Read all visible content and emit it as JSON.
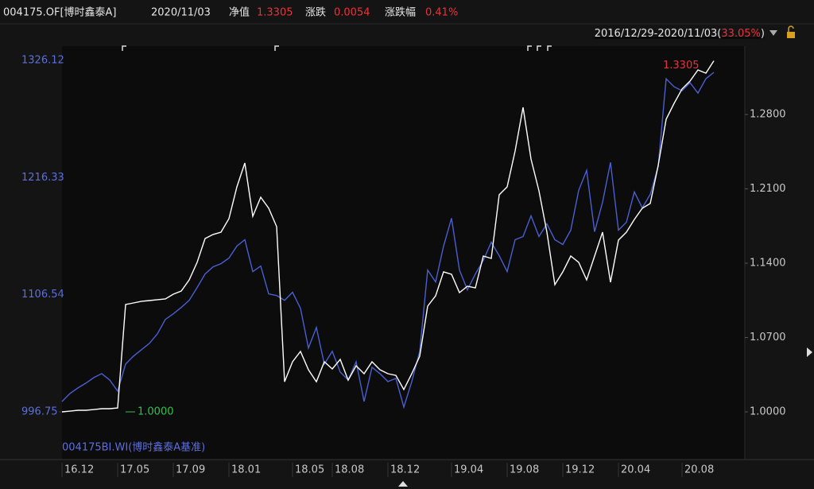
{
  "chart_data": {
    "type": "line",
    "header": {
      "date": "2020/11/03",
      "nav_label": "净值",
      "nav": "1.3305",
      "chg_label": "涨跌",
      "chg": "0.0054",
      "pct_label": "涨跌幅",
      "pct": "0.41%"
    },
    "range_text": "2016/12/29-2020/11/03(",
    "range_pct": "33.05%",
    "range_close": ")",
    "categories": [
      "16.12",
      null,
      null,
      null,
      null,
      null,
      null,
      "17.05",
      null,
      null,
      null,
      null,
      null,
      null,
      "17.09",
      null,
      null,
      null,
      null,
      null,
      null,
      "18.01",
      null,
      null,
      null,
      null,
      null,
      null,
      null,
      "18.05",
      null,
      null,
      null,
      null,
      "18.08",
      null,
      null,
      null,
      null,
      null,
      null,
      "18.12",
      null,
      null,
      null,
      null,
      null,
      null,
      null,
      "19.04",
      null,
      null,
      null,
      null,
      null,
      null,
      "19.08",
      null,
      null,
      null,
      null,
      null,
      null,
      "19.12",
      null,
      null,
      null,
      null,
      null,
      null,
      "20.04",
      null,
      null,
      null,
      null,
      null,
      null,
      null,
      "20.08",
      null,
      null,
      null,
      null
    ],
    "series": [
      {
        "name": "004175.OF[博时鑫泰A]",
        "color": "#ffffff",
        "axis": "y2",
        "values": [
          1.0,
          1.0007,
          1.0015,
          1.0015,
          1.0022,
          1.003,
          1.003,
          1.0037,
          1.1011,
          1.1026,
          1.1041,
          1.1048,
          1.1056,
          1.1063,
          1.1108,
          1.1138,
          1.1243,
          1.1408,
          1.1632,
          1.167,
          1.1692,
          1.1819,
          1.2119,
          1.2343,
          1.1842,
          1.2021,
          1.1917,
          1.1744,
          1.0284,
          1.0472,
          1.0569,
          1.0397,
          1.0284,
          1.0472,
          1.0404,
          1.0494,
          1.0299,
          1.0434,
          1.0359,
          1.0472,
          1.0397,
          1.0359,
          1.0344,
          1.021,
          1.0359,
          1.0524,
          1.0996,
          1.1093,
          1.1318,
          1.1295,
          1.1123,
          1.1183,
          1.1168,
          1.1467,
          1.1445,
          1.2044,
          1.2119,
          1.2456,
          1.2867,
          1.2381,
          1.2081,
          1.1692,
          1.1198,
          1.1318,
          1.1467,
          1.1408,
          1.1243,
          1.1467,
          1.1692,
          1.122,
          1.1617,
          1.1692,
          1.1812,
          1.1917,
          1.1962,
          1.2321,
          1.2755,
          1.2905,
          1.304,
          1.3114,
          1.3219,
          1.3189,
          1.3305
        ]
      },
      {
        "name": "004175BI.WI(博时鑫泰A基准)",
        "color": "#4a5fd0",
        "values": [
          1006.46,
          1013.93,
          1019.16,
          1023.64,
          1028.87,
          1032.6,
          1026.63,
          1016.17,
          1041.56,
          1049.03,
          1055.01,
          1060.98,
          1069.95,
          1083.39,
          1088.62,
          1094.59,
          1101.32,
          1113.27,
          1125.96,
          1132.69,
          1135.67,
          1140.9,
          1152.11,
          1158.08,
          1128.2,
          1133.43,
          1107.29,
          1105.8,
          1101.32,
          1108.79,
          1093.85,
          1056.5,
          1075.92,
          1041.56,
          1053.51,
          1034.1,
          1026.63,
          1043.8,
          1006.46,
          1038.58,
          1032.6,
          1025.13,
          1028.12,
          1001.23,
          1025.13,
          1053.51,
          1129.7,
          1118.49,
          1152.11,
          1178.25,
          1129.7,
          1111.03,
          1125.96,
          1138.66,
          1155.84,
          1143.14,
          1128.2,
          1158.08,
          1161.07,
          1180.49,
          1161.07,
          1173.02,
          1158.08,
          1153.6,
          1167.04,
          1204.39,
          1223.06,
          1165.55,
          1193.18,
          1230.53,
          1167.04,
          1174.51,
          1202.89,
          1187.96,
          1200.65,
          1226.8,
          1308.95,
          1301.49,
          1297.75,
          1305.22,
          1295.51,
          1308.95,
          1314.93
        ]
      }
    ],
    "annotations": [
      {
        "text": "1.0000",
        "color": "#2fc24a"
      },
      {
        "text": "1.3305",
        "color": "#e8333b"
      }
    ],
    "ylim": [
      996.75,
      1326.12
    ],
    "yticks": [
      996.75,
      1106.54,
      1216.33,
      1326.12
    ],
    "y2lim": [
      1.0,
      1.3309
    ],
    "y2ticks": [
      {
        "value": 1.0,
        "label": "1.0000"
      },
      {
        "value": 1.07,
        "label": "1.0700"
      },
      {
        "value": 1.14,
        "label": "1.1400"
      },
      {
        "value": 1.21,
        "label": "1.2100"
      },
      {
        "value": 1.28,
        "label": "1.2800"
      }
    ],
    "grid": false
  }
}
